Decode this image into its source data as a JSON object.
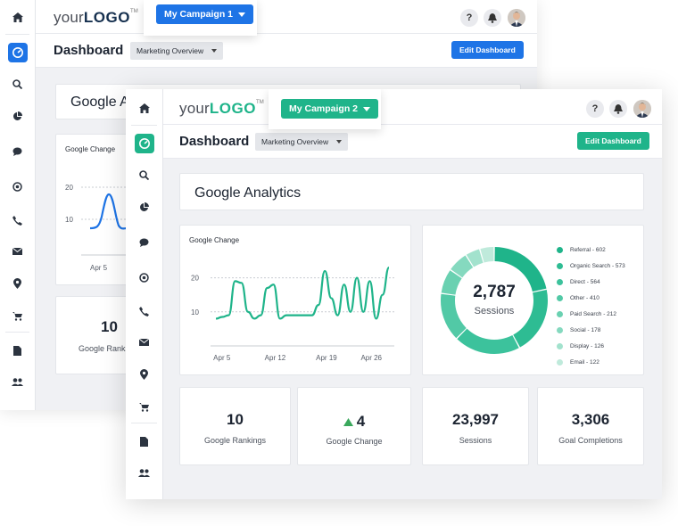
{
  "back_window": {
    "logo": {
      "prefix": "your",
      "strong": "LOGO",
      "tm": "TM"
    },
    "campaign": {
      "label": "My Campaign 1",
      "color": "#1e74e6"
    },
    "dashboard_title": "Dashboard",
    "overview_select": "Marketing Overview",
    "edit_button": "Edit Dashboard",
    "ga_card_title": "Google Analytics",
    "chart": {
      "title": "Google Change",
      "y_ticks": [
        "20",
        "10"
      ],
      "x_ticks": [
        "Apr 5"
      ]
    },
    "kpi": {
      "value": "10",
      "label": "Google Rankings"
    }
  },
  "front_window": {
    "logo": {
      "prefix": "your",
      "strong": "LOGO",
      "tm": "TM"
    },
    "campaign": {
      "label": "My Campaign 2",
      "color": "#1fb48a"
    },
    "help_icon_label": "?",
    "dashboard_title": "Dashboard",
    "overview_select": "Marketing Overview",
    "edit_button": "Edit Dashboard",
    "ga_card_title": "Google Analytics",
    "donut": {
      "value": "2,787",
      "label": "Sessions",
      "legend": [
        {
          "label": "Referral - 602",
          "value": 602,
          "color": "#1fb48a"
        },
        {
          "label": "Organic Search - 573",
          "value": 573,
          "color": "#2ebc93"
        },
        {
          "label": "Direct - 564",
          "value": 564,
          "color": "#3cc29c"
        },
        {
          "label": "Other - 410",
          "value": 410,
          "color": "#52c9a6"
        },
        {
          "label": "Paid Search - 212",
          "value": 212,
          "color": "#6ad1b1"
        },
        {
          "label": "Social - 178",
          "value": 178,
          "color": "#85d9bf"
        },
        {
          "label": "Display - 126",
          "value": 126,
          "color": "#a2e2cd"
        },
        {
          "label": "Email - 122",
          "value": 122,
          "color": "#bfeadb"
        }
      ]
    },
    "kpis": [
      {
        "value": "10",
        "label": "Google Rankings"
      },
      {
        "value": "4",
        "label": "Google Change",
        "trend": "up"
      },
      {
        "value": "23,997",
        "label": "Sessions"
      },
      {
        "value": "3,306",
        "label": "Goal Completions"
      }
    ]
  },
  "chart_data": {
    "type": "line",
    "title": "Google Change",
    "x_ticks": [
      "Apr 5",
      "Apr 12",
      "Apr 19",
      "Apr 26"
    ],
    "y_ticks": [
      20,
      10
    ],
    "ylim": [
      0,
      28
    ],
    "color": "#1fb48a",
    "series": [
      {
        "values": [
          8,
          8.5,
          9,
          19,
          18.5,
          10,
          8,
          9,
          17,
          18,
          8,
          9,
          9,
          9,
          9,
          9,
          12,
          22,
          14,
          9,
          18,
          10,
          20,
          10,
          19,
          8,
          15,
          23
        ]
      }
    ]
  }
}
